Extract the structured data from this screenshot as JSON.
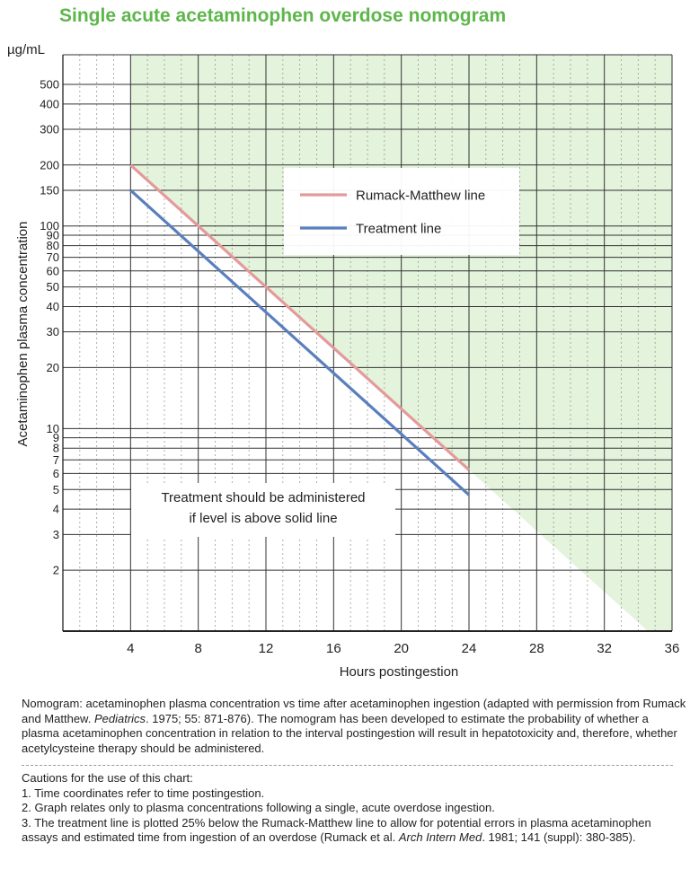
{
  "title": "Single acute acetaminophen overdose nomogram",
  "chart_data": {
    "type": "line",
    "title": "Single acute acetaminophen overdose nomogram",
    "xlabel": "Hours postingestion",
    "ylabel": "Acetaminophen plasma concentration",
    "yunit": "µg/mL",
    "y_scale": "log",
    "xlim": [
      0,
      36
    ],
    "ylim": [
      1,
      700
    ],
    "x_ticks": [
      4,
      8,
      12,
      16,
      20,
      24,
      28,
      32,
      36
    ],
    "y_ticks": [
      2,
      3,
      4,
      5,
      6,
      7,
      8,
      9,
      10,
      20,
      30,
      40,
      50,
      60,
      70,
      80,
      90,
      100,
      150,
      200,
      300,
      400,
      500
    ],
    "grid": true,
    "legend_position": "top-right",
    "shaded_region_color": "#e3f3dc",
    "series": [
      {
        "name": "Rumack-Matthew line",
        "color": "#e49a9a",
        "x": [
          4,
          24
        ],
        "y": [
          200,
          6.25
        ]
      },
      {
        "name": "Treatment line",
        "color": "#5a7fbd",
        "x": [
          4,
          24
        ],
        "y": [
          150,
          4.7
        ]
      }
    ],
    "annotation": [
      "Treatment should be administered",
      "if level is above solid line"
    ]
  },
  "captions": {
    "nomogram_a": "Nomogram: acetaminophen plasma concentration vs time after acetaminophen ingestion (adapted with permission from Rumack and Matthew. ",
    "nomogram_journal": "Pediatrics",
    "nomogram_b": ". 1975; 55: 871-876). The nomogram has been developed to estimate the probability of whether a plasma acetaminophen concentration in relation to the interval postingestion will result in hepatotoxicity and, therefore, whether acetylcysteine therapy should be administered.",
    "cautions_title": "Cautions for the use of this chart:",
    "caution_1": "1. Time coordinates refer to time postingestion.",
    "caution_2": "2. Graph relates only to plasma concentrations following a single, acute overdose ingestion.",
    "caution_3a": "3. The treatment line is plotted 25% below the Rumack-Matthew line to allow for potential errors in plasma acetaminophen assays and estimated time from ingestion of an overdose (Rumack et al. ",
    "caution_3_journal": "Arch Intern Med",
    "caution_3b": ". 1981; 141 (suppl): 380-385)."
  }
}
